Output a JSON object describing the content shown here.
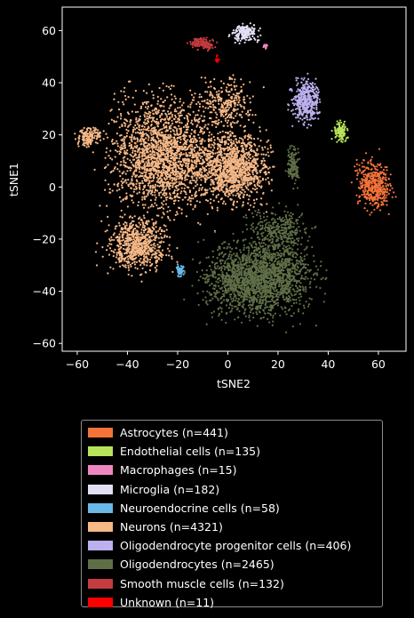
{
  "chart_data": {
    "type": "scatter",
    "xlabel": "tSNE2",
    "ylabel": "tSNE1",
    "xlim": [
      -66,
      71
    ],
    "ylim": [
      -63,
      69
    ],
    "xticks": [
      -60,
      -40,
      -20,
      0,
      20,
      40,
      60
    ],
    "yticks": [
      -60,
      -40,
      -20,
      0,
      20,
      40,
      60
    ],
    "grid": false,
    "legend_position": "below",
    "series": [
      {
        "name": "Astrocytes (n=441)",
        "color": "#f4733a",
        "clusters": [
          {
            "cx": 58,
            "cy": 1,
            "rx": 6,
            "ry": 8,
            "n": 441
          }
        ]
      },
      {
        "name": "Endothelial cells (n=135)",
        "color": "#b8e35a",
        "clusters": [
          {
            "cx": 45,
            "cy": 21,
            "rx": 2.5,
            "ry": 3,
            "n": 135
          }
        ]
      },
      {
        "name": "Macrophages (n=15)",
        "color": "#ee87c1",
        "clusters": [
          {
            "cx": 15,
            "cy": 54,
            "rx": 1,
            "ry": 1,
            "n": 15
          }
        ]
      },
      {
        "name": "Microglia (n=182)",
        "color": "#e3dff5",
        "clusters": [
          {
            "cx": 7,
            "cy": 59,
            "rx": 4.5,
            "ry": 3,
            "n": 182
          }
        ]
      },
      {
        "name": "Neuroendocrine cells (n=58)",
        "color": "#6ab8e8",
        "clusters": [
          {
            "cx": -19,
            "cy": -32,
            "rx": 1.5,
            "ry": 1.5,
            "n": 58
          }
        ]
      },
      {
        "name": "Neurons (n=4321)",
        "color": "#f6b887",
        "clusters": [
          {
            "cx": -25,
            "cy": 12,
            "rx": 18,
            "ry": 18,
            "n": 2000
          },
          {
            "cx": 2,
            "cy": 8,
            "rx": 12,
            "ry": 12,
            "n": 1200
          },
          {
            "cx": -36,
            "cy": -22,
            "rx": 10,
            "ry": 9,
            "n": 700
          },
          {
            "cx": -55,
            "cy": 19,
            "rx": 4,
            "ry": 3,
            "n": 150
          },
          {
            "cx": 0,
            "cy": 32,
            "rx": 10,
            "ry": 8,
            "n": 271
          }
        ]
      },
      {
        "name": "Oligodendrocyte progenitor cells (n=406)",
        "color": "#bdb0ee",
        "clusters": [
          {
            "cx": 31,
            "cy": 33,
            "rx": 4.5,
            "ry": 7,
            "n": 406
          }
        ]
      },
      {
        "name": "Oligodendrocytes (n=2465)",
        "color": "#5f6e47",
        "clusters": [
          {
            "cx": 12,
            "cy": -35,
            "rx": 18,
            "ry": 12,
            "n": 2000
          },
          {
            "cx": 20,
            "cy": -17,
            "rx": 10,
            "ry": 7,
            "n": 330
          },
          {
            "cx": 26,
            "cy": 8,
            "rx": 2,
            "ry": 6,
            "n": 135
          }
        ]
      },
      {
        "name": "Smooth muscle cells (n=132)",
        "color": "#c43b40",
        "clusters": [
          {
            "cx": -10,
            "cy": 55,
            "rx": 4,
            "ry": 2,
            "n": 132
          }
        ]
      },
      {
        "name": "Unknown (n=11)",
        "color": "#ff0000",
        "clusters": [
          {
            "cx": -4,
            "cy": 49,
            "rx": 1,
            "ry": 1,
            "n": 11
          }
        ]
      }
    ]
  }
}
